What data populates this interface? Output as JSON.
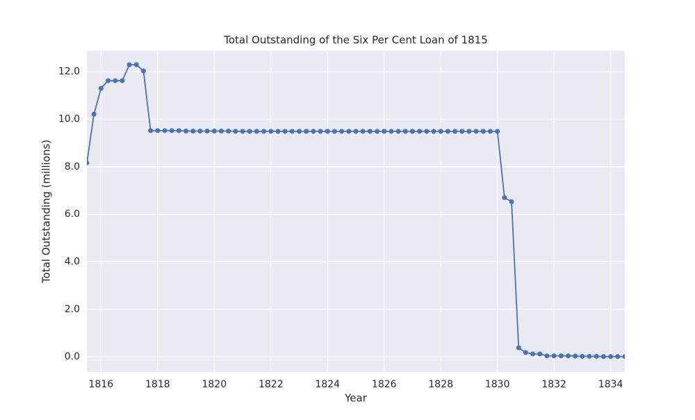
{
  "chart_data": {
    "type": "line",
    "title": "Total Outstanding of the Six Per Cent Loan of 1815",
    "x_label": "Year",
    "y_label": "Total Outstanding (millions)",
    "x": [
      1815.5,
      1815.75,
      1816,
      1816.25,
      1816.5,
      1816.75,
      1817,
      1817.25,
      1817.5,
      1817.75,
      1818,
      1818.25,
      1818.5,
      1818.75,
      1819,
      1819.25,
      1819.5,
      1819.75,
      1820,
      1820.25,
      1820.5,
      1820.75,
      1821,
      1821.25,
      1821.5,
      1821.75,
      1822,
      1822.25,
      1822.5,
      1822.75,
      1823,
      1823.25,
      1823.5,
      1823.75,
      1824,
      1824.25,
      1824.5,
      1824.75,
      1825,
      1825.25,
      1825.5,
      1825.75,
      1826,
      1826.25,
      1826.5,
      1826.75,
      1827,
      1827.25,
      1827.5,
      1827.75,
      1828,
      1828.25,
      1828.5,
      1828.75,
      1829,
      1829.25,
      1829.5,
      1829.75,
      1830,
      1830.25,
      1830.5,
      1830.75,
      1831,
      1831.25,
      1831.5,
      1831.75,
      1832,
      1832.25,
      1832.5,
      1832.75,
      1833,
      1833.25,
      1833.5,
      1833.75,
      1834,
      1834.25,
      1834.5
    ],
    "series": [
      {
        "name": "Total Outstanding",
        "color": "#4c72b0",
        "values": [
          8.16,
          10.21,
          11.3,
          11.62,
          11.62,
          11.62,
          12.29,
          12.29,
          12.03,
          9.52,
          9.52,
          9.52,
          9.52,
          9.52,
          9.5,
          9.5,
          9.5,
          9.5,
          9.5,
          9.5,
          9.5,
          9.49,
          9.49,
          9.49,
          9.49,
          9.49,
          9.49,
          9.49,
          9.49,
          9.49,
          9.49,
          9.49,
          9.49,
          9.49,
          9.49,
          9.49,
          9.49,
          9.49,
          9.49,
          9.49,
          9.49,
          9.49,
          9.49,
          9.49,
          9.49,
          9.49,
          9.49,
          9.49,
          9.49,
          9.49,
          9.49,
          9.49,
          9.49,
          9.49,
          9.49,
          9.49,
          9.49,
          9.49,
          9.49,
          6.7,
          6.53,
          0.38,
          0.18,
          0.12,
          0.12,
          0.04,
          0.04,
          0.04,
          0.04,
          0.03,
          0.02,
          0.02,
          0.02,
          0.01,
          0.01,
          0.01,
          0.01
        ]
      }
    ],
    "xlim": [
      1815.5,
      1834.5
    ],
    "xticks": [
      1816,
      1818,
      1820,
      1822,
      1824,
      1826,
      1828,
      1830,
      1832,
      1834
    ],
    "ylim": [
      -0.64,
      12.88
    ],
    "yticks": [
      {
        "value": 0,
        "label": "0.0"
      },
      {
        "value": 2,
        "label": "2.0"
      },
      {
        "value": 4,
        "label": "4.0"
      },
      {
        "value": 6,
        "label": "6.0"
      },
      {
        "value": 8,
        "label": "8.0"
      },
      {
        "value": 10,
        "label": "10.0"
      },
      {
        "value": 12,
        "label": "12.0"
      }
    ],
    "grid": true
  }
}
